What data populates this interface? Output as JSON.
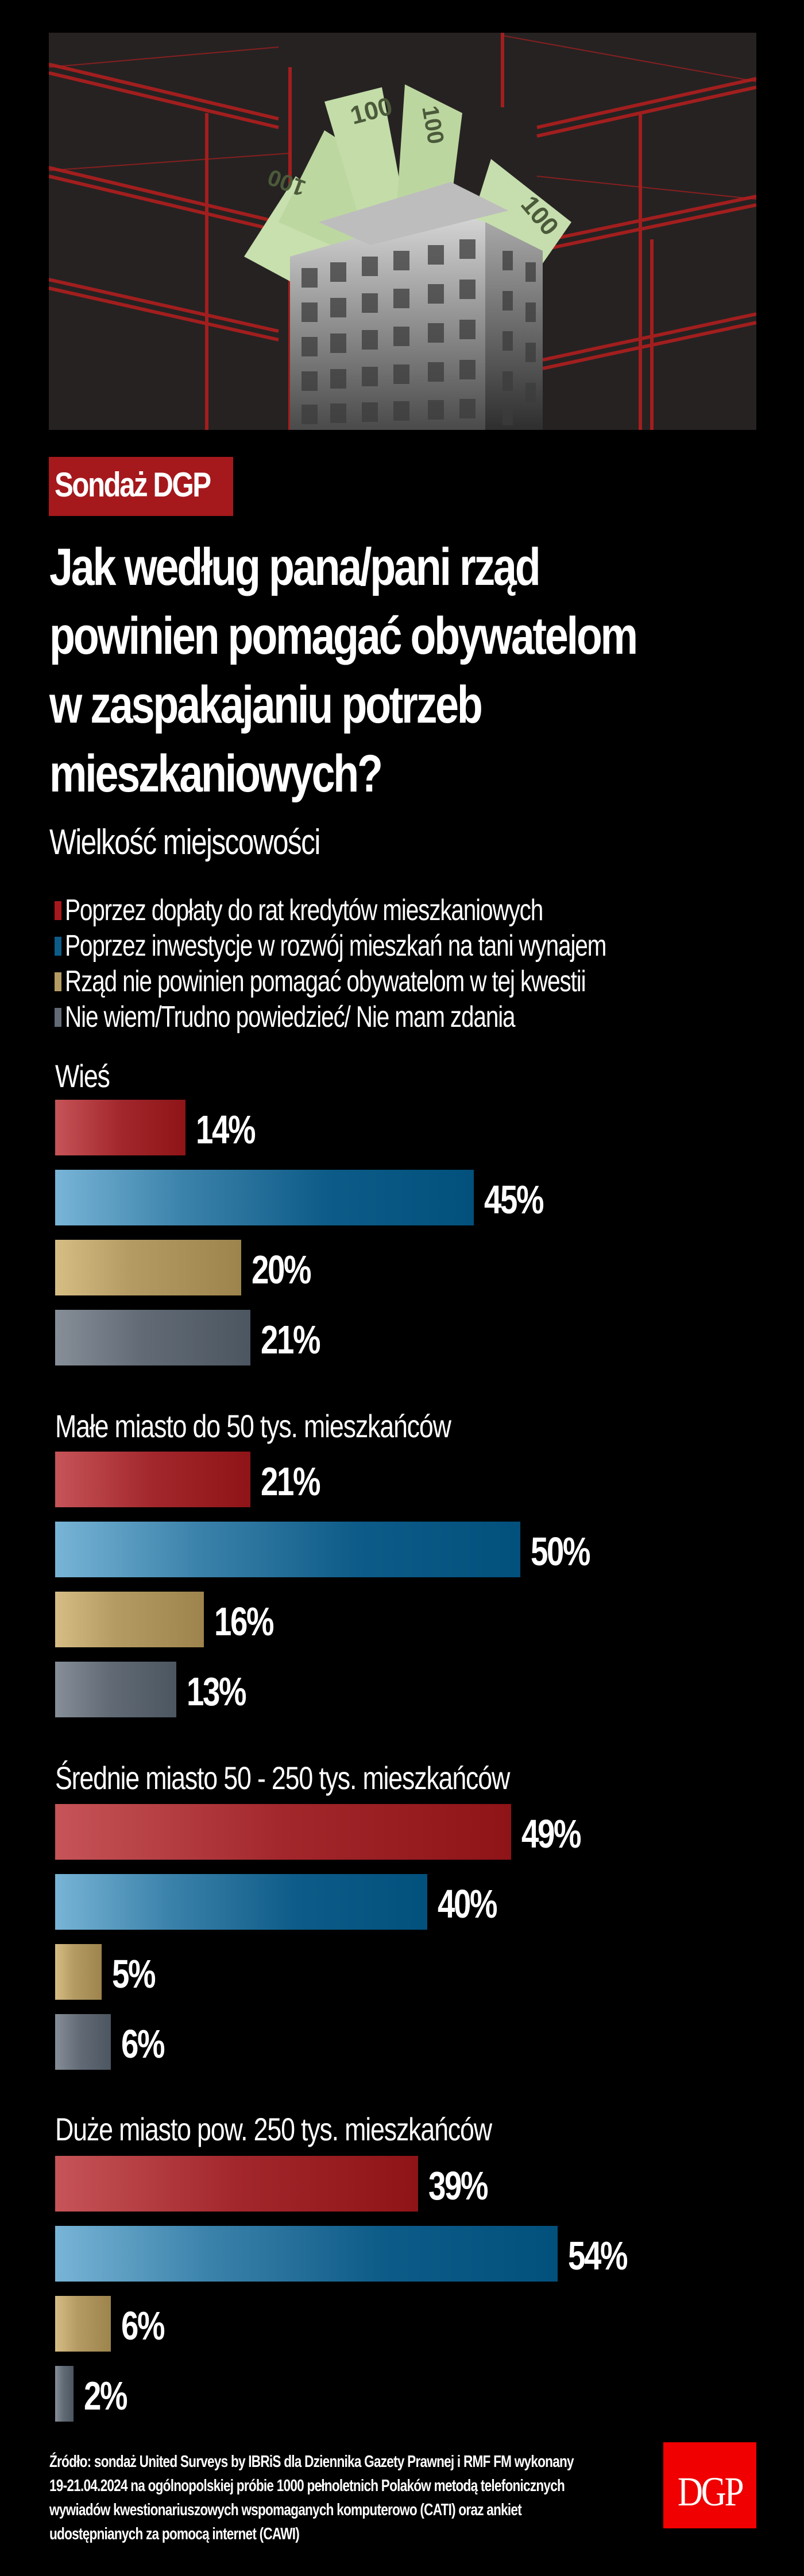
{
  "header": {
    "badge": "Sondaż DGP",
    "title_lines": [
      "Jak według pana/pani rząd",
      "powinien pomagać obywatelom",
      "w zaspakajaniu potrzeb",
      "mieszkaniowych?"
    ],
    "subtitle": "Wielkość miejscowości"
  },
  "hero_image": {
    "description": "Collage: grayscale apartment block with 100 złoty banknotes emerging from the roof, red construction cranes in background"
  },
  "legend": [
    {
      "label": "Poprzez dopłaty do rat kredytów mieszkaniowych",
      "color": "#a5181c"
    },
    {
      "label": "Poprzez inwestycje w rozwój mieszkań na tani wynajem",
      "color": "#0d5b88"
    },
    {
      "label": "Rząd nie powinien pomagać obywatelom w tej kwestii",
      "color": "#b49b63"
    },
    {
      "label": "Nie wiem/Trudno powiedzieć/ Nie mam zdania",
      "color": "#616a75"
    }
  ],
  "groups": [
    {
      "label": "Wieś",
      "values": [
        "14%",
        "45%",
        "20%",
        "21%"
      ]
    },
    {
      "label": "Małe miasto do 50 tys. mieszkańców",
      "values": [
        "21%",
        "50%",
        "16%",
        "13%"
      ]
    },
    {
      "label": "Średnie miasto 50 - 250 tys. mieszkańców",
      "values": [
        "49%",
        "40%",
        "5%",
        "6%"
      ]
    },
    {
      "label": "Duże miasto pow. 250 tys. mieszkańców",
      "values": [
        "39%",
        "54%",
        "6%",
        "2%"
      ]
    }
  ],
  "footer": {
    "source_lines": [
      "Źródło: sondaż United Surveys by IBRiS dla Dziennika Gazety Prawnej i RMF FM wykonany",
      "19-21.04.2024 na ogólnopolskiej próbie 1000 pełnoletnich Polaków metodą telefonicznych",
      "wywiadów kwestionariuszowych wspomaganych komputerowo (CATI) oraz ankiet",
      "udostępnianych za pomocą internet (CAWI)"
    ],
    "logo": "DGP"
  },
  "colors": {
    "background": "#000000",
    "badge": "#a5181c",
    "logo": "#f00000",
    "series": [
      "#a5181c",
      "#0d5b88",
      "#b49b63",
      "#616a75"
    ]
  },
  "chart_data": {
    "type": "bar",
    "orientation": "horizontal",
    "title": "Jak według pana/pani rząd powinien pomagać obywatelom w zaspakajaniu potrzeb mieszkaniowych?",
    "subtitle": "Wielkość miejscowości",
    "categories": [
      "Wieś",
      "Małe miasto do 50 tys. mieszkańców",
      "Średnie miasto 50 - 250 tys. mieszkańców",
      "Duże miasto pow. 250 tys. mieszkańców"
    ],
    "series": [
      {
        "name": "Poprzez dopłaty do rat kredytów mieszkaniowych",
        "values": [
          14,
          21,
          49,
          39
        ]
      },
      {
        "name": "Poprzez inwestycje w rozwój mieszkań na tani wynajem",
        "values": [
          45,
          50,
          40,
          54
        ]
      },
      {
        "name": "Rząd nie powinien pomagać obywatelom w tej kwestii",
        "values": [
          20,
          16,
          5,
          6
        ]
      },
      {
        "name": "Nie wiem/Trudno powiedzieć/ Nie mam zdania",
        "values": [
          21,
          13,
          6,
          2
        ]
      }
    ],
    "unit": "%",
    "xlabel": "",
    "ylabel": "",
    "xlim": [
      0,
      100
    ],
    "grid": false,
    "legend_position": "top",
    "data_labels": true,
    "source": "Źródło: sondaż United Surveys by IBRiS dla Dziennika Gazety Prawnej i RMF FM wykonany 19-21.04.2024 na ogólnopolskiej próbie 1000 pełnoletnich Polaków metodą telefonicznych wywiadów kwestionariuszowych wspomaganych komputerowo (CATI) oraz ankiet udostępnianych za pomocą internet (CAWI)"
  }
}
